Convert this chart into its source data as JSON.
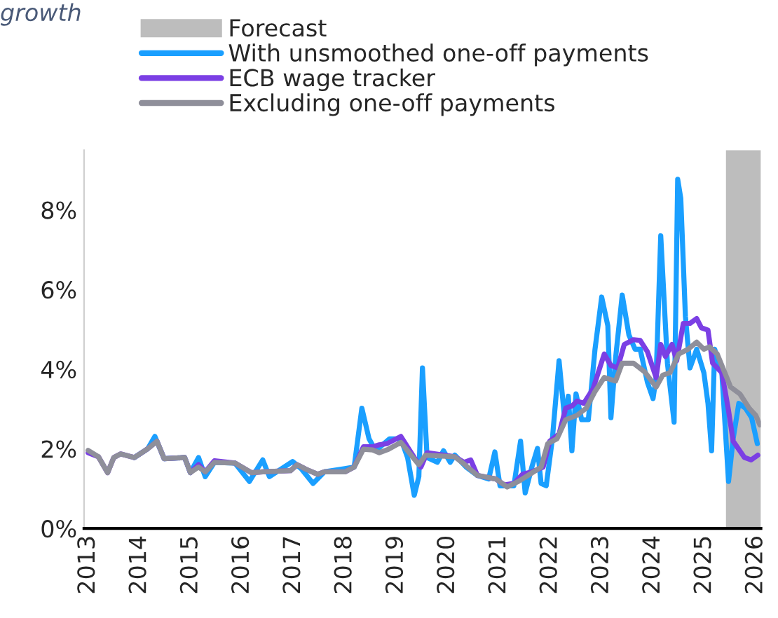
{
  "chart_data": {
    "type": "line",
    "title": "growth",
    "xlim": [
      2012.92,
      2026.1
    ],
    "xticks": [
      2013,
      2014,
      2015,
      2016,
      2017,
      2018,
      2019,
      2020,
      2021,
      2022,
      2023,
      2024,
      2025,
      2026
    ],
    "ylim": [
      0,
      9.5
    ],
    "yticks": [
      {
        "value": 0,
        "label": "0%"
      },
      {
        "value": 2,
        "label": "2%"
      },
      {
        "value": 4,
        "label": "4%"
      },
      {
        "value": 6,
        "label": "6%"
      },
      {
        "value": 8,
        "label": "8%"
      }
    ],
    "grid": false,
    "legend": "top",
    "line_style": "solid",
    "marker": "none",
    "bands": [
      {
        "axis": "x",
        "from": 2025.42,
        "to": 2026.1,
        "label": "Forecast",
        "color": "#bdbdbd"
      }
    ],
    "series": [
      {
        "name": "With unsmoothed one-off payments",
        "color": "#1a9fff",
        "x": [
          2013.9,
          2014.16,
          2014.3,
          2014.48,
          2014.88,
          2014.99,
          2015.15,
          2015.28,
          2015.46,
          2015.86,
          2016.14,
          2016.4,
          2016.53,
          2016.98,
          2017.15,
          2017.38,
          2017.6,
          2018.0,
          2018.18,
          2018.33,
          2018.47,
          2018.6,
          2018.87,
          2019.09,
          2019.22,
          2019.35,
          2019.44,
          2019.51,
          2019.6,
          2019.8,
          2019.92,
          2020.05,
          2020.14,
          2020.36,
          2020.58,
          2020.8,
          2020.92,
          2021.02,
          2021.29,
          2021.42,
          2021.51,
          2021.64,
          2021.75,
          2021.82,
          2021.92,
          2022.04,
          2022.17,
          2022.28,
          2022.35,
          2022.42,
          2022.5,
          2022.61,
          2022.74,
          2022.87,
          2023.0,
          2023.12,
          2023.18,
          2023.27,
          2023.4,
          2023.53,
          2023.65,
          2023.75,
          2023.89,
          2024.0,
          2024.06,
          2024.15,
          2024.28,
          2024.41,
          2024.48,
          2024.54,
          2024.63,
          2024.72,
          2024.85,
          2024.99,
          2025.07,
          2025.14,
          2025.2,
          2025.34,
          2025.47,
          2025.56,
          2025.67,
          2025.8,
          2025.92,
          2026.03
        ],
        "values": [
          1.78,
          2.0,
          2.31,
          1.75,
          1.78,
          1.4,
          1.78,
          1.3,
          1.66,
          1.64,
          1.18,
          1.72,
          1.3,
          1.68,
          1.5,
          1.13,
          1.42,
          1.5,
          1.54,
          3.02,
          2.25,
          1.95,
          2.25,
          2.25,
          1.78,
          0.83,
          1.3,
          4.03,
          1.78,
          1.66,
          1.95,
          1.66,
          1.84,
          1.54,
          1.33,
          1.24,
          1.92,
          1.07,
          1.07,
          2.19,
          0.89,
          1.54,
          2.01,
          1.13,
          1.07,
          2.25,
          4.21,
          2.73,
          3.32,
          1.95,
          3.38,
          2.73,
          2.73,
          4.5,
          5.81,
          5.09,
          2.78,
          4.27,
          5.86,
          4.86,
          4.5,
          4.5,
          3.67,
          3.26,
          3.79,
          7.35,
          4.15,
          2.67,
          8.77,
          8.29,
          5.33,
          4.03,
          4.5,
          3.91,
          3.14,
          1.95,
          4.5,
          3.91,
          1.18,
          2.25,
          3.14,
          3.02,
          2.78,
          2.13
        ]
      },
      {
        "name": "ECB wage tracker",
        "color": "#7b3fe4",
        "x": [
          2013.0,
          2013.2,
          2013.38,
          2013.5,
          2013.63,
          2013.9,
          2014.16,
          2014.34,
          2014.48,
          2014.88,
          2014.99,
          2015.15,
          2015.28,
          2015.46,
          2015.86,
          2016.18,
          2016.4,
          2016.94,
          2017.07,
          2017.25,
          2017.47,
          2017.6,
          2018.0,
          2018.18,
          2018.36,
          2018.54,
          2018.67,
          2018.82,
          2019.09,
          2019.35,
          2019.48,
          2019.6,
          2020.14,
          2020.32,
          2020.45,
          2020.58,
          2020.94,
          2021.11,
          2021.29,
          2021.46,
          2021.64,
          2021.86,
          2021.99,
          2022.17,
          2022.3,
          2022.43,
          2022.52,
          2022.65,
          2022.83,
          2023.05,
          2023.18,
          2023.31,
          2023.44,
          2023.62,
          2023.75,
          2023.89,
          2024.06,
          2024.15,
          2024.24,
          2024.37,
          2024.46,
          2024.59,
          2024.72,
          2024.85,
          2024.94,
          2025.07,
          2025.16,
          2025.34,
          2025.47,
          2025.56,
          2025.78,
          2025.91,
          2026.04
        ],
        "values": [
          1.9,
          1.8,
          1.4,
          1.78,
          1.87,
          1.78,
          2.0,
          2.19,
          1.75,
          1.78,
          1.4,
          1.6,
          1.42,
          1.7,
          1.64,
          1.4,
          1.42,
          1.45,
          1.6,
          1.48,
          1.36,
          1.42,
          1.42,
          1.54,
          2.05,
          2.05,
          2.1,
          2.13,
          2.31,
          1.78,
          1.54,
          1.9,
          1.8,
          1.66,
          1.72,
          1.33,
          1.24,
          1.09,
          1.13,
          1.36,
          1.42,
          1.54,
          2.19,
          2.37,
          3.02,
          3.08,
          3.2,
          3.14,
          3.5,
          4.38,
          4.09,
          4.03,
          4.62,
          4.74,
          4.72,
          4.44,
          3.79,
          4.62,
          4.32,
          4.62,
          4.21,
          5.15,
          5.15,
          5.27,
          5.04,
          4.98,
          4.15,
          3.91,
          2.96,
          2.19,
          1.78,
          1.72,
          1.84
        ]
      },
      {
        "name": "Excluding one-off payments",
        "color": "#8f8f9a",
        "x": [
          2013.0,
          2013.2,
          2013.38,
          2013.5,
          2013.63,
          2013.9,
          2014.16,
          2014.34,
          2014.48,
          2014.88,
          2014.99,
          2015.15,
          2015.28,
          2015.46,
          2015.86,
          2016.18,
          2016.4,
          2016.94,
          2017.07,
          2017.25,
          2017.47,
          2017.6,
          2018.0,
          2018.18,
          2018.36,
          2018.54,
          2018.67,
          2018.85,
          2019.09,
          2019.22,
          2019.44,
          2019.57,
          2020.14,
          2020.28,
          2020.58,
          2020.94,
          2021.16,
          2021.38,
          2021.6,
          2021.82,
          2021.95,
          2022.13,
          2022.3,
          2022.52,
          2022.7,
          2022.87,
          2023.05,
          2023.27,
          2023.4,
          2023.62,
          2023.84,
          2024.06,
          2024.19,
          2024.33,
          2024.5,
          2024.68,
          2024.85,
          2024.99,
          2025.1,
          2025.25,
          2025.51,
          2025.69,
          2025.87,
          2026.0,
          2026.08
        ],
        "values": [
          1.96,
          1.8,
          1.4,
          1.78,
          1.87,
          1.78,
          2.0,
          2.19,
          1.75,
          1.78,
          1.4,
          1.54,
          1.42,
          1.66,
          1.64,
          1.4,
          1.42,
          1.45,
          1.6,
          1.48,
          1.36,
          1.42,
          1.42,
          1.54,
          1.99,
          1.97,
          1.9,
          1.99,
          2.16,
          1.95,
          1.6,
          1.84,
          1.8,
          1.66,
          1.33,
          1.24,
          1.04,
          1.18,
          1.36,
          1.54,
          2.13,
          2.25,
          2.73,
          2.84,
          3.02,
          3.44,
          3.79,
          3.7,
          4.15,
          4.15,
          3.93,
          3.55,
          3.85,
          3.91,
          4.38,
          4.5,
          4.68,
          4.5,
          4.56,
          4.38,
          3.55,
          3.38,
          3.02,
          2.84,
          2.6
        ]
      }
    ]
  }
}
